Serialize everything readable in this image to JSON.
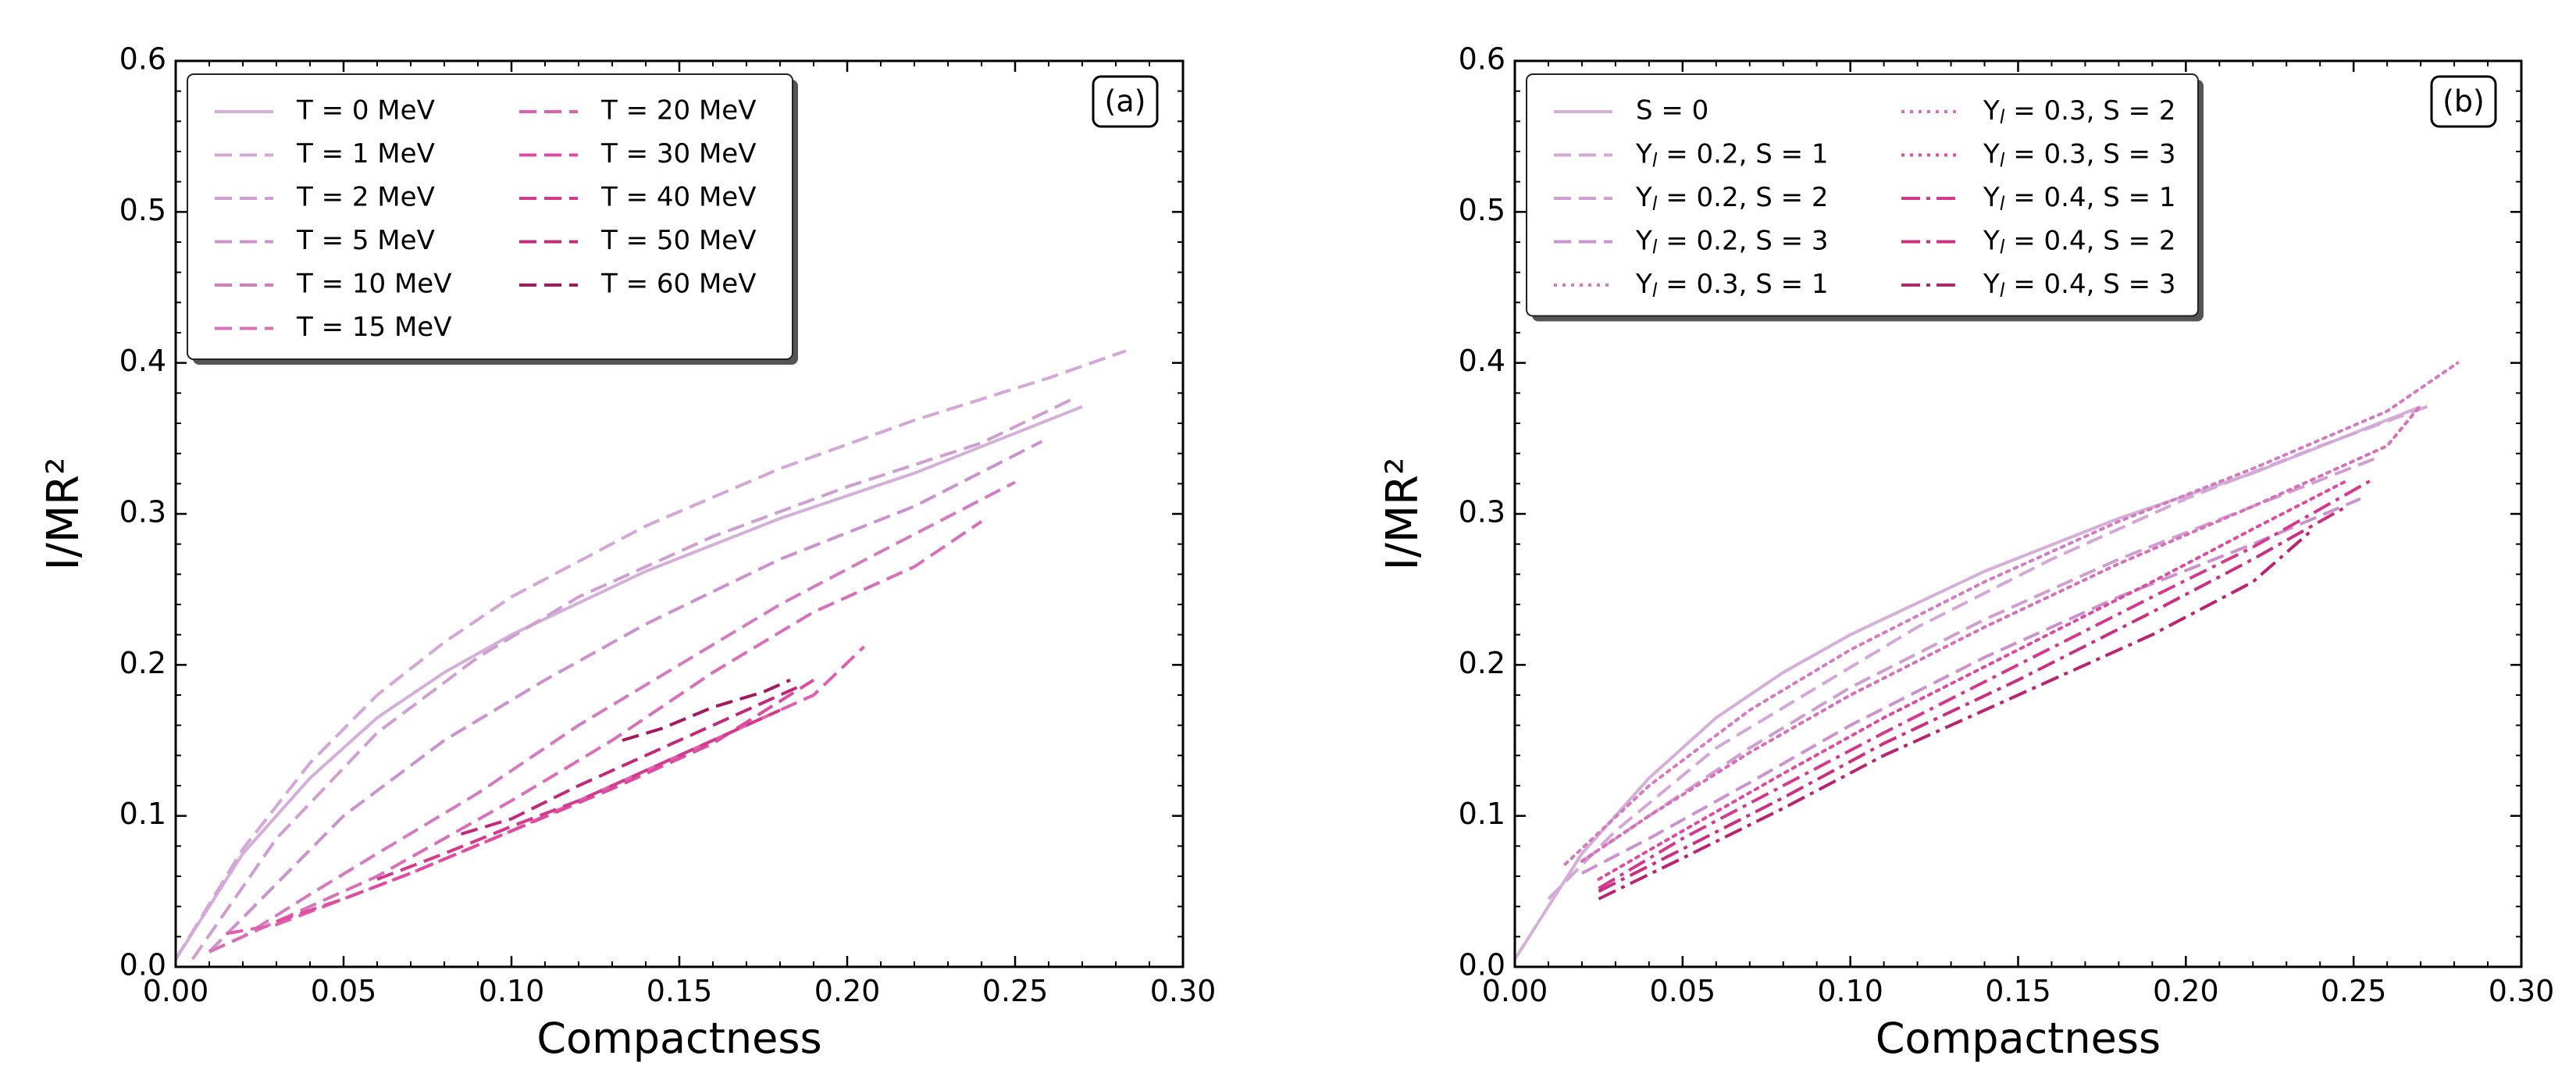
{
  "chart_data": [
    {
      "type": "line",
      "panel_label": "(a)",
      "xlabel": "Compactness",
      "ylabel": "I/MR²",
      "xlim": [
        0.0,
        0.3
      ],
      "ylim": [
        0.0,
        0.6
      ],
      "xticks": [
        "0.00",
        "0.05",
        "0.10",
        "0.15",
        "0.20",
        "0.25",
        "0.30"
      ],
      "yticks": [
        "0.0",
        "0.1",
        "0.2",
        "0.3",
        "0.4",
        "0.5",
        "0.6"
      ],
      "legend_position": "top-left",
      "series": [
        {
          "name": "T = 0 MeV",
          "color": "#d4b0d9",
          "style": "solid",
          "points": [
            [
              0.0,
              0.005
            ],
            [
              0.02,
              0.075
            ],
            [
              0.04,
              0.125
            ],
            [
              0.06,
              0.165
            ],
            [
              0.08,
              0.195
            ],
            [
              0.1,
              0.22
            ],
            [
              0.14,
              0.262
            ],
            [
              0.18,
              0.297
            ],
            [
              0.22,
              0.327
            ],
            [
              0.27,
              0.371
            ]
          ]
        },
        {
          "name": "T = 1 MeV",
          "color": "#d4a8d6",
          "style": "dashed",
          "points": [
            [
              0.0,
              0.005
            ],
            [
              0.02,
              0.078
            ],
            [
              0.04,
              0.135
            ],
            [
              0.06,
              0.18
            ],
            [
              0.08,
              0.215
            ],
            [
              0.1,
              0.245
            ],
            [
              0.14,
              0.292
            ],
            [
              0.18,
              0.33
            ],
            [
              0.22,
              0.362
            ],
            [
              0.26,
              0.39
            ],
            [
              0.283,
              0.408
            ]
          ]
        },
        {
          "name": "T = 2 MeV",
          "color": "#cf9fd1",
          "style": "dashed",
          "points": [
            [
              0.005,
              0.005
            ],
            [
              0.03,
              0.085
            ],
            [
              0.06,
              0.155
            ],
            [
              0.09,
              0.205
            ],
            [
              0.12,
              0.245
            ],
            [
              0.16,
              0.285
            ],
            [
              0.2,
              0.318
            ],
            [
              0.24,
              0.347
            ],
            [
              0.268,
              0.377
            ]
          ]
        },
        {
          "name": "T = 5 MeV",
          "color": "#cb93cd",
          "style": "dashed",
          "points": [
            [
              0.01,
              0.01
            ],
            [
              0.03,
              0.055
            ],
            [
              0.05,
              0.1
            ],
            [
              0.08,
              0.15
            ],
            [
              0.11,
              0.19
            ],
            [
              0.14,
              0.227
            ],
            [
              0.18,
              0.27
            ],
            [
              0.22,
              0.305
            ],
            [
              0.258,
              0.348
            ]
          ]
        },
        {
          "name": "T = 10 MeV",
          "color": "#d47cc0",
          "style": "dashed",
          "points": [
            [
              0.01,
              0.01
            ],
            [
              0.02,
              0.02
            ],
            [
              0.04,
              0.048
            ],
            [
              0.06,
              0.075
            ],
            [
              0.09,
              0.115
            ],
            [
              0.12,
              0.16
            ],
            [
              0.15,
              0.2
            ],
            [
              0.18,
              0.24
            ],
            [
              0.21,
              0.275
            ],
            [
              0.25,
              0.321
            ]
          ]
        },
        {
          "name": "T = 15 MeV",
          "color": "#d870b8",
          "style": "dashed",
          "points": [
            [
              0.01,
              0.01
            ],
            [
              0.02,
              0.02
            ],
            [
              0.04,
              0.04
            ],
            [
              0.06,
              0.06
            ],
            [
              0.08,
              0.085
            ],
            [
              0.1,
              0.11
            ],
            [
              0.13,
              0.15
            ],
            [
              0.16,
              0.195
            ],
            [
              0.19,
              0.235
            ],
            [
              0.22,
              0.265
            ],
            [
              0.24,
              0.295
            ]
          ]
        },
        {
          "name": "T = 20 MeV",
          "color": "#e060ae",
          "style": "dashed",
          "points": [
            [
              0.015,
              0.022
            ],
            [
              0.03,
              0.028
            ],
            [
              0.05,
              0.045
            ],
            [
              0.07,
              0.062
            ],
            [
              0.1,
              0.09
            ],
            [
              0.13,
              0.12
            ],
            [
              0.16,
              0.15
            ],
            [
              0.19,
              0.18
            ],
            [
              0.205,
              0.212
            ]
          ]
        },
        {
          "name": "T = 30 MeV",
          "color": "#dd4c9f",
          "style": "dashed",
          "points": [
            [
              0.03,
              0.03
            ],
            [
              0.05,
              0.045
            ],
            [
              0.07,
              0.062
            ],
            [
              0.1,
              0.09
            ],
            [
              0.13,
              0.118
            ],
            [
              0.16,
              0.148
            ],
            [
              0.19,
              0.19
            ]
          ]
        },
        {
          "name": "T = 40 MeV",
          "color": "#d33a8e",
          "style": "dashed",
          "points": [
            [
              0.06,
              0.058
            ],
            [
              0.08,
              0.075
            ],
            [
              0.1,
              0.093
            ],
            [
              0.12,
              0.11
            ],
            [
              0.15,
              0.14
            ],
            [
              0.18,
              0.17
            ]
          ]
        },
        {
          "name": "T = 50 MeV",
          "color": "#c02a78",
          "style": "dashed",
          "points": [
            [
              0.085,
              0.088
            ],
            [
              0.1,
              0.098
            ],
            [
              0.12,
              0.12
            ],
            [
              0.14,
              0.14
            ],
            [
              0.16,
              0.16
            ],
            [
              0.185,
              0.185
            ]
          ]
        },
        {
          "name": "T = 60 MeV",
          "color": "#a3185f",
          "style": "dashed",
          "points": [
            [
              0.133,
              0.15
            ],
            [
              0.145,
              0.158
            ],
            [
              0.16,
              0.172
            ],
            [
              0.175,
              0.182
            ],
            [
              0.183,
              0.19
            ]
          ]
        }
      ]
    },
    {
      "type": "line",
      "panel_label": "(b)",
      "xlabel": "Compactness",
      "ylabel": "I/MR²",
      "xlim": [
        0.0,
        0.3
      ],
      "ylim": [
        0.0,
        0.6
      ],
      "xticks": [
        "0.00",
        "0.05",
        "0.10",
        "0.15",
        "0.20",
        "0.25",
        "0.30"
      ],
      "yticks": [
        "0.0",
        "0.1",
        "0.2",
        "0.3",
        "0.4",
        "0.5",
        "0.6"
      ],
      "legend_position": "top-left",
      "series": [
        {
          "name": "S = 0",
          "color": "#d4b0d9",
          "style": "solid",
          "points": [
            [
              0.0,
              0.005
            ],
            [
              0.02,
              0.075
            ],
            [
              0.04,
              0.125
            ],
            [
              0.06,
              0.165
            ],
            [
              0.08,
              0.195
            ],
            [
              0.1,
              0.22
            ],
            [
              0.14,
              0.262
            ],
            [
              0.18,
              0.297
            ],
            [
              0.22,
              0.327
            ],
            [
              0.27,
              0.371
            ]
          ]
        },
        {
          "name": "Y_l = 0.2, S = 1",
          "color": "#d4a8d6",
          "style": "dashed",
          "points": [
            [
              0.01,
              0.045
            ],
            [
              0.03,
              0.09
            ],
            [
              0.06,
              0.145
            ],
            [
              0.09,
              0.185
            ],
            [
              0.12,
              0.225
            ],
            [
              0.16,
              0.27
            ],
            [
              0.2,
              0.31
            ],
            [
              0.24,
              0.345
            ],
            [
              0.273,
              0.372
            ]
          ]
        },
        {
          "name": "Y_l = 0.2, S = 2",
          "color": "#cf9fd1",
          "style": "dashed",
          "points": [
            [
              0.02,
              0.07
            ],
            [
              0.04,
              0.1
            ],
            [
              0.07,
              0.145
            ],
            [
              0.1,
              0.185
            ],
            [
              0.14,
              0.23
            ],
            [
              0.18,
              0.27
            ],
            [
              0.22,
              0.305
            ],
            [
              0.258,
              0.338
            ]
          ]
        },
        {
          "name": "Y_l = 0.2, S = 3",
          "color": "#cb93cd",
          "style": "dashed",
          "points": [
            [
              0.02,
              0.062
            ],
            [
              0.04,
              0.085
            ],
            [
              0.07,
              0.122
            ],
            [
              0.1,
              0.16
            ],
            [
              0.14,
              0.205
            ],
            [
              0.18,
              0.245
            ],
            [
              0.22,
              0.28
            ],
            [
              0.252,
              0.31
            ]
          ]
        },
        {
          "name": "Y_l = 0.3, S = 1",
          "color": "#d47cc0",
          "style": "dotted",
          "points": [
            [
              0.015,
              0.068
            ],
            [
              0.04,
              0.12
            ],
            [
              0.07,
              0.17
            ],
            [
              0.1,
              0.21
            ],
            [
              0.14,
              0.255
            ],
            [
              0.18,
              0.295
            ],
            [
              0.22,
              0.33
            ],
            [
              0.26,
              0.368
            ],
            [
              0.281,
              0.4
            ]
          ]
        },
        {
          "name": "Y_l = 0.3, S = 2",
          "color": "#d870b8",
          "style": "dotted",
          "points": [
            [
              0.02,
              0.07
            ],
            [
              0.04,
              0.1
            ],
            [
              0.07,
              0.142
            ],
            [
              0.1,
              0.18
            ],
            [
              0.14,
              0.225
            ],
            [
              0.18,
              0.267
            ],
            [
              0.22,
              0.305
            ],
            [
              0.26,
              0.345
            ],
            [
              0.27,
              0.372
            ]
          ]
        },
        {
          "name": "Y_l = 0.3, S = 3",
          "color": "#dd4c9f",
          "style": "dotted",
          "points": [
            [
              0.025,
              0.058
            ],
            [
              0.05,
              0.09
            ],
            [
              0.08,
              0.128
            ],
            [
              0.11,
              0.165
            ],
            [
              0.15,
              0.21
            ],
            [
              0.19,
              0.255
            ],
            [
              0.22,
              0.29
            ],
            [
              0.248,
              0.322
            ]
          ]
        },
        {
          "name": "Y_l = 0.4, S = 1",
          "color": "#d33a8e",
          "style": "dashdot",
          "points": [
            [
              0.025,
              0.052
            ],
            [
              0.05,
              0.085
            ],
            [
              0.08,
              0.12
            ],
            [
              0.11,
              0.155
            ],
            [
              0.15,
              0.2
            ],
            [
              0.19,
              0.245
            ],
            [
              0.22,
              0.278
            ],
            [
              0.255,
              0.322
            ]
          ]
        },
        {
          "name": "Y_l = 0.4, S = 2",
          "color": "#c9307f",
          "style": "dashdot",
          "points": [
            [
              0.025,
              0.05
            ],
            [
              0.05,
              0.078
            ],
            [
              0.08,
              0.112
            ],
            [
              0.11,
              0.148
            ],
            [
              0.15,
              0.19
            ],
            [
              0.19,
              0.235
            ],
            [
              0.22,
              0.27
            ],
            [
              0.248,
              0.305
            ]
          ]
        },
        {
          "name": "Y_l = 0.4, S = 3",
          "color": "#b82470",
          "style": "dashdot",
          "points": [
            [
              0.025,
              0.045
            ],
            [
              0.05,
              0.072
            ],
            [
              0.08,
              0.105
            ],
            [
              0.11,
              0.14
            ],
            [
              0.15,
              0.18
            ],
            [
              0.19,
              0.22
            ],
            [
              0.22,
              0.255
            ],
            [
              0.238,
              0.29
            ]
          ]
        }
      ]
    }
  ]
}
